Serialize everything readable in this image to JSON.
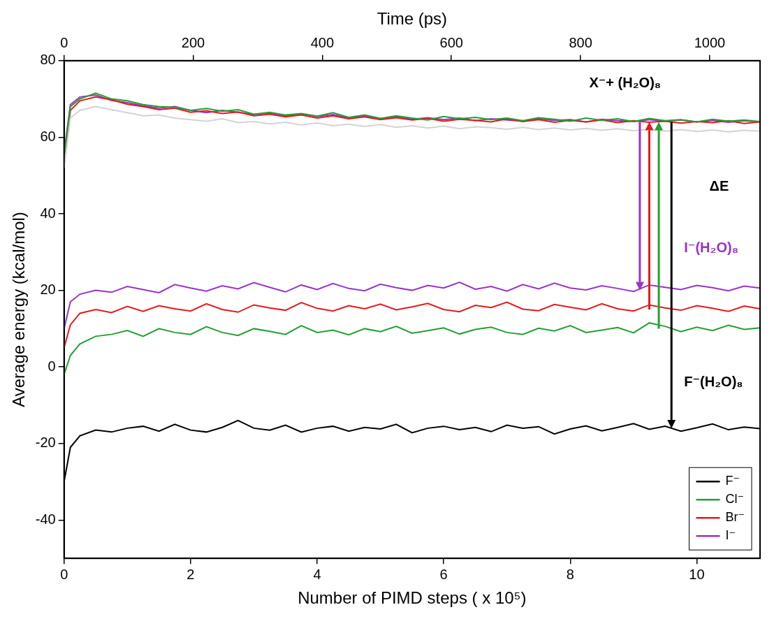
{
  "chart_data": {
    "type": "line",
    "xlabel": "Number of PIMD steps ( x 10⁵)",
    "x2label": "Time (ps)",
    "ylabel": "Average energy (kcal/mol)",
    "xlim": [
      0,
      11
    ],
    "xticks": [
      0,
      2,
      4,
      6,
      8,
      10
    ],
    "x2lim": [
      0,
      1078
    ],
    "x2ticks": [
      0,
      200,
      400,
      600,
      800,
      1000
    ],
    "ylim": [
      -50,
      80
    ],
    "yticks": [
      -40,
      -20,
      0,
      20,
      40,
      60,
      80
    ],
    "grid": false,
    "legend": "lower right",
    "x": [
      0,
      0.1,
      0.25,
      0.5,
      0.75,
      1,
      1.25,
      1.5,
      1.75,
      2,
      2.25,
      2.5,
      2.75,
      3,
      3.25,
      3.5,
      3.75,
      4,
      4.25,
      4.5,
      4.75,
      5,
      5.25,
      5.5,
      5.75,
      6,
      6.25,
      6.5,
      6.75,
      7,
      7.25,
      7.5,
      7.75,
      8,
      8.25,
      8.5,
      8.75,
      9,
      9.25,
      9.5,
      9.75,
      10,
      10.25,
      10.5,
      10.75,
      11
    ],
    "series": [
      {
        "color": "#d3d3d3",
        "line_style": "solid",
        "values": [
          52,
          65,
          67,
          68,
          67.2,
          66.4,
          65.6,
          65.8,
          65,
          64.6,
          64.2,
          64.8,
          63.8,
          64.1,
          63.5,
          63.9,
          63.2,
          63.7,
          63,
          63.4,
          62.8,
          63.3,
          62.6,
          63,
          62.4,
          62.9,
          62.2,
          62.7,
          62.5,
          62.1,
          62.6,
          62,
          62.4,
          61.9,
          62.3,
          61.8,
          62.2,
          61.7,
          62.1,
          61.6,
          62,
          61.5,
          61.9,
          61.4,
          61.8,
          61.6
        ]
      },
      {
        "color": "#22a030",
        "line_style": "solid",
        "values": [
          55,
          68,
          70,
          71.5,
          70,
          69.5,
          68.5,
          68,
          67.8,
          67,
          67.5,
          66.8,
          67.2,
          66,
          66.5,
          65.8,
          66.2,
          65.5,
          66.4,
          65.2,
          65.8,
          64.9,
          65.6,
          65,
          64.5,
          65.4,
          64.8,
          65.2,
          64.6,
          65,
          64.3,
          65.1,
          64.7,
          64.2,
          65,
          64.4,
          64.8,
          64.1,
          64.9,
          64.3,
          64.6,
          64,
          64.7,
          64.2,
          64.5,
          64.1
        ]
      },
      {
        "color": "#e41a1c",
        "line_style": "solid",
        "values": [
          54,
          67,
          69.5,
          70.5,
          69.8,
          68.6,
          68,
          67.2,
          67.6,
          66.5,
          66.9,
          66.2,
          66.6,
          65.6,
          66,
          65.3,
          65.8,
          65,
          65.6,
          64.8,
          65.3,
          64.6,
          65.1,
          64.5,
          64.9,
          64.2,
          64.7,
          64.4,
          64,
          64.8,
          64.1,
          64.6,
          63.9,
          64.4,
          64,
          64.5,
          63.8,
          64.3,
          63.9,
          64.2,
          63.7,
          64.1,
          63.8,
          64.3,
          63.6,
          64
        ]
      },
      {
        "color": "#9932cc",
        "line_style": "solid",
        "values": [
          56,
          68.5,
          70.5,
          71,
          69.6,
          69,
          68.2,
          67.6,
          68,
          67,
          66.4,
          67,
          66.5,
          65.9,
          66.3,
          65.6,
          66.1,
          65.4,
          65.9,
          65.1,
          65.5,
          64.8,
          65.3,
          64.7,
          65.1,
          64.6,
          65,
          64.3,
          64.8,
          64.5,
          64.2,
          64.8,
          64.4,
          64.6,
          64,
          64.7,
          64.3,
          64.1,
          64.6,
          64.2,
          64.5,
          64,
          64.4,
          63.9,
          64.3,
          64
        ]
      },
      {
        "name": "F⁻",
        "color": "#000000",
        "line_style": "solid",
        "values": [
          -30,
          -21,
          -18,
          -16.5,
          -17,
          -16,
          -15.5,
          -16.8,
          -15,
          -16.5,
          -17,
          -15.8,
          -14,
          -16,
          -16.5,
          -15.2,
          -17,
          -16,
          -15.5,
          -16.8,
          -15.8,
          -16.2,
          -15,
          -17.2,
          -16,
          -15.5,
          -16.4,
          -15.8,
          -16.9,
          -15.2,
          -16,
          -15.6,
          -17.5,
          -16.2,
          -15.4,
          -16.7,
          -15.8,
          -14.8,
          -16.3,
          -15.5,
          -16.8,
          -15.9,
          -14.9,
          -16.4,
          -15.7,
          -16.1
        ]
      },
      {
        "name": "Cl⁻",
        "color": "#22a030",
        "line_style": "solid",
        "values": [
          -2,
          3,
          6,
          8,
          8.5,
          9.5,
          8,
          10,
          9,
          8.5,
          10.5,
          9,
          8.2,
          10,
          9.3,
          8.5,
          10.8,
          9,
          9.6,
          8.4,
          10,
          9.2,
          10.6,
          8.8,
          9.5,
          10.2,
          8.6,
          9.8,
          10.4,
          9,
          8.5,
          10.1,
          9.4,
          10.8,
          9,
          9.6,
          10.3,
          8.9,
          11.5,
          10.6,
          9.2,
          10.4,
          9.5,
          10.9,
          9.8,
          10.2
        ]
      },
      {
        "name": "Br⁻",
        "color": "#e41a1c",
        "line_style": "solid",
        "values": [
          5,
          11,
          14,
          15,
          14.2,
          15.8,
          14.5,
          16,
          15.2,
          14.6,
          16.5,
          15,
          14.3,
          16.2,
          15.4,
          14.8,
          16.8,
          15.3,
          14.6,
          16,
          15.2,
          16.4,
          14.9,
          15.7,
          16.6,
          15,
          14.4,
          16.1,
          15.5,
          16.9,
          15.1,
          14.7,
          16.3,
          15.6,
          14.9,
          16.5,
          15.2,
          14.6,
          16.2,
          15.4,
          14.8,
          16,
          15.3,
          14.5,
          15.9,
          15.2
        ]
      },
      {
        "name": "I⁻",
        "color": "#9932cc",
        "line_style": "solid",
        "values": [
          10,
          17,
          19,
          20,
          19.5,
          21,
          20.2,
          19.4,
          21.5,
          20.6,
          19.8,
          21.2,
          20.4,
          22,
          20.8,
          19.6,
          21.4,
          20.2,
          21.8,
          20.5,
          19.9,
          21.6,
          20.7,
          20,
          21.3,
          20.6,
          22.1,
          20.3,
          21,
          19.8,
          21.5,
          20.4,
          21.9,
          20.6,
          20.1,
          21.2,
          20.5,
          19.7,
          21.4,
          20.8,
          20.2,
          21.3,
          20.7,
          19.9,
          21.1,
          20.6
        ]
      }
    ],
    "annotations": [
      {
        "text": "X⁻+ (H₂O)₈",
        "x": 8.3,
        "y": 74,
        "color": "#000000"
      },
      {
        "text": "ΔE",
        "x": 10.2,
        "y": 47,
        "color": "#000000"
      },
      {
        "text": "I⁻(H₂O)₈",
        "x": 9.8,
        "y": 31,
        "color": "#9932cc"
      },
      {
        "text": "F⁻(H₂O)₈",
        "x": 9.8,
        "y": -4,
        "color": "#000000"
      }
    ],
    "arrows": [
      {
        "x": 9.1,
        "from": 64,
        "to": 20,
        "color": "#9932cc"
      },
      {
        "x": 9.25,
        "from": 15,
        "to": 64,
        "color": "#e41a1c"
      },
      {
        "x": 9.4,
        "from": 10,
        "to": 64,
        "color": "#22a030"
      },
      {
        "x": 9.6,
        "from": 64,
        "to": -16,
        "color": "#000000"
      }
    ]
  }
}
